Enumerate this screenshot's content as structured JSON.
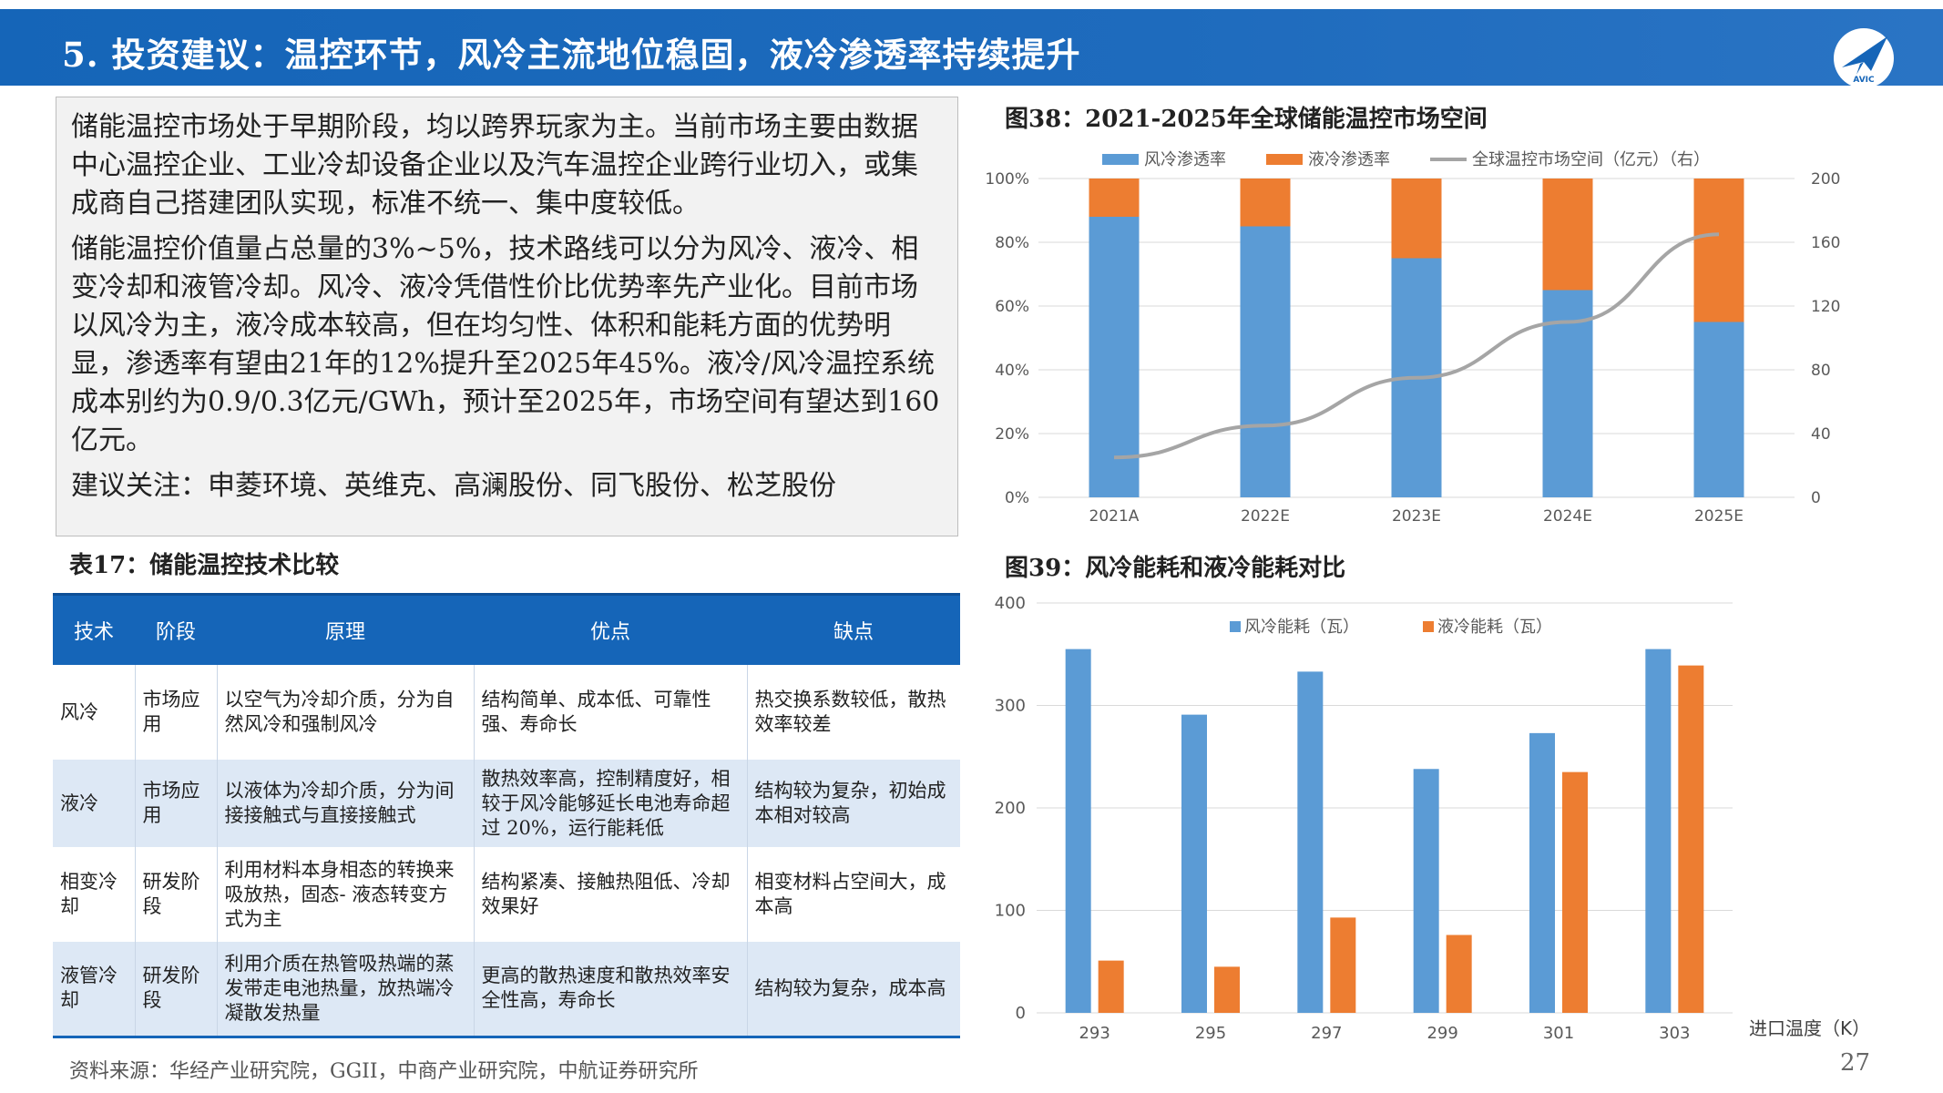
{
  "header": {
    "title": "5. 投资建议：温控环节，风冷主流地位稳固，液冷渗透率持续提升",
    "logo_label": "AVIC",
    "logo_icon": "avic-plane-icon"
  },
  "summary": {
    "p1": "储能温控市场处于早期阶段，均以跨界玩家为主。当前市场主要由数据中心温控企业、工业冷却设备企业以及汽车温控企业跨行业切入，或集成商自己搭建团队实现，标准不统一、集中度较低。",
    "p2": "储能温控价值量占总量的3%~5%，技术路线可以分为风冷、液冷、相变冷却和液管冷却。风冷、液冷凭借性价比优势率先产业化。目前市场以风冷为主，液冷成本较高，但在均匀性、体积和能耗方面的优势明显，渗透率有望由21年的12%提升至2025年45%。液冷/风冷温控系统成本别约为0.9/0.3亿元/GWh，预计至2025年，市场空间有望达到160亿元。",
    "p3": "建议关注：申菱环境、英维克、高澜股份、同飞股份、松芝股份"
  },
  "table": {
    "title": "表17：储能温控技术比较",
    "headers": [
      "技术",
      "阶段",
      "原理",
      "优点",
      "缺点"
    ],
    "rows": [
      [
        "风冷",
        "市场应用",
        "以空气为冷却介质，分为自然风冷和强制风冷",
        "结构简单、成本低、可靠性强、寿命长",
        "热交换系数较低，散热效率较差"
      ],
      [
        "液冷",
        "市场应用",
        "以液体为冷却介质，分为间接接触式与直接接触式",
        "散热效率高，控制精度好，相较于风冷能够延长电池寿命超过 20%，运行能耗低",
        "结构较为复杂，初始成本相对较高"
      ],
      [
        "相变冷却",
        "研发阶段",
        "利用材料本身相态的转换来吸放热，固态- 液态转变方式为主",
        "结构紧凑、接触热阻低、冷却效果好",
        "相变材料占空间大，成本高"
      ],
      [
        "液管冷却",
        "研发阶段",
        "利用介质在热管吸热端的蒸发带走电池热量，放热端冷凝散发热量",
        "更高的散热速度和散热效率安全性高，寿命长",
        "结构较为复杂，成本高"
      ]
    ]
  },
  "source": "资料来源：华经产业研究院，GGII，中商产业研究院，中航证券研究所",
  "page_number": "27",
  "chart_data": [
    {
      "type": "bar",
      "title": "图38：2021-2025年全球储能温控市场空间",
      "categories": [
        "2021A",
        "2022E",
        "2023E",
        "2024E",
        "2025E"
      ],
      "stacked": true,
      "series": [
        {
          "name": "风冷渗透率",
          "values": [
            88,
            85,
            75,
            65,
            55
          ],
          "color": "#5b9bd5",
          "kind": "bar"
        },
        {
          "name": "液冷渗透率",
          "values": [
            12,
            15,
            25,
            35,
            45
          ],
          "color": "#ed7d31",
          "kind": "bar"
        },
        {
          "name": "全球温控市场空间（亿元）（右）",
          "values": [
            25,
            45,
            75,
            110,
            165
          ],
          "color": "#a5a5a5",
          "kind": "line",
          "axis": "right"
        }
      ],
      "y_ticks": [
        "0%",
        "20%",
        "40%",
        "60%",
        "80%",
        "100%"
      ],
      "ylim": [
        0,
        100
      ],
      "y2_ticks": [
        "0",
        "40",
        "80",
        "120",
        "160",
        "200"
      ],
      "y2lim": [
        0,
        200
      ],
      "legend": "top",
      "grid": true
    },
    {
      "type": "bar",
      "title": "图39：风冷能耗和液冷能耗对比",
      "categories": [
        "293",
        "295",
        "297",
        "299",
        "301",
        "303"
      ],
      "series": [
        {
          "name": "风冷能耗（瓦）",
          "values": [
            355,
            291,
            333,
            238,
            273,
            355
          ],
          "color": "#5b9bd5"
        },
        {
          "name": "液冷能耗（瓦）",
          "values": [
            51,
            45,
            93,
            76,
            235,
            339
          ],
          "color": "#ed7d31"
        }
      ],
      "xlabel": "进口温度（K）",
      "y_ticks": [
        "0",
        "100",
        "200",
        "300",
        "400"
      ],
      "ylim": [
        0,
        400
      ],
      "legend": "top",
      "grid": true
    }
  ]
}
